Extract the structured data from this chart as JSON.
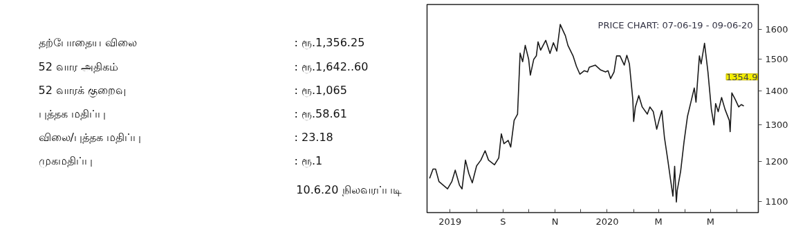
{
  "chart_data": [
    {
      "type": "other",
      "annotations": [
        "தற்போதைய விலை",
        ": ரூ.1,356.25",
        "52 வார அதிகம்",
        ": ரூ.1,642..60",
        "52 வாரக் குறைவு",
        ": ரூ.1,065",
        "புத்தக மதிப்பு",
        ": ரூ.58.61",
        "விலை/புத்தக மதிப்பு",
        ": 23.18",
        "முகமதிப்பு",
        ": ரூ.1",
        "10.6.20 நிலவரப்படி"
      ]
    },
    {
      "type": "line",
      "title": "PRICE CHART: 07-06-19 - 09-06-20",
      "log": "y",
      "x": [
        "2019-06-07",
        "2019-06-11",
        "2019-06-14",
        "2019-06-18",
        "2019-06-23",
        "2019-06-28",
        "2019-07-03",
        "2019-07-07",
        "2019-07-12",
        "2019-07-15",
        "2019-07-19",
        "2019-07-23",
        "2019-07-27",
        "2019-08-01",
        "2019-08-06",
        "2019-08-11",
        "2019-08-15",
        "2019-08-22",
        "2019-08-27",
        "2019-08-30",
        "2019-09-02",
        "2019-09-07",
        "2019-09-10",
        "2019-09-14",
        "2019-09-18",
        "2019-09-21",
        "2019-09-24",
        "2019-09-27",
        "2019-10-01",
        "2019-10-03",
        "2019-10-07",
        "2019-10-10",
        "2019-10-12",
        "2019-10-15",
        "2019-10-21",
        "2019-10-26",
        "2019-10-30",
        "2019-11-03",
        "2019-11-07",
        "2019-11-10",
        "2019-11-13",
        "2019-11-16",
        "2019-11-22",
        "2019-11-26",
        "2019-11-30",
        "2019-12-05",
        "2019-12-09",
        "2019-12-11",
        "2019-12-18",
        "2019-12-24",
        "2019-12-30",
        "2020-01-02",
        "2020-01-05",
        "2020-01-09",
        "2020-01-12",
        "2020-01-16",
        "2020-01-21",
        "2020-01-24",
        "2020-01-27",
        "2020-01-31",
        "2020-02-01",
        "2020-02-03",
        "2020-02-07",
        "2020-02-11",
        "2020-02-17",
        "2020-02-20",
        "2020-02-24",
        "2020-02-28",
        "2020-03-02",
        "2020-03-05",
        "2020-03-08",
        "2020-03-12",
        "2020-03-15",
        "2020-03-18",
        "2020-03-20",
        "2020-03-22",
        "2020-03-23",
        "2020-03-27",
        "2020-03-31",
        "2020-04-04",
        "2020-04-08",
        "2020-04-12",
        "2020-04-14",
        "2020-04-18",
        "2020-04-20",
        "2020-04-24",
        "2020-04-28",
        "2020-05-02",
        "2020-05-05",
        "2020-05-07",
        "2020-05-10",
        "2020-05-14",
        "2020-05-18",
        "2020-05-23",
        "2020-05-24",
        "2020-05-26",
        "2020-05-30",
        "2020-06-03",
        "2020-06-06",
        "2020-06-09"
      ],
      "series": [
        {
          "color": "#1a1a1a",
          "values": [
            1157,
            1181,
            1181,
            1149,
            1140,
            1131,
            1149,
            1178,
            1140,
            1131,
            1204,
            1169,
            1146,
            1189,
            1204,
            1229,
            1204,
            1192,
            1210,
            1275,
            1248,
            1257,
            1239,
            1313,
            1331,
            1520,
            1492,
            1546,
            1500,
            1449,
            1500,
            1511,
            1558,
            1530,
            1563,
            1519,
            1555,
            1527,
            1618,
            1598,
            1579,
            1546,
            1511,
            1477,
            1452,
            1463,
            1459,
            1474,
            1481,
            1466,
            1459,
            1463,
            1438,
            1459,
            1511,
            1511,
            1481,
            1513,
            1485,
            1374,
            1310,
            1352,
            1386,
            1352,
            1331,
            1352,
            1338,
            1288,
            1316,
            1341,
            1266,
            1204,
            1157,
            1113,
            1188,
            1099,
            1127,
            1175,
            1253,
            1324,
            1366,
            1409,
            1366,
            1511,
            1485,
            1553,
            1459,
            1345,
            1300,
            1362,
            1338,
            1380,
            1345,
            1313,
            1281,
            1394,
            1374,
            1352,
            1359,
            1354.9
          ]
        }
      ],
      "xlim": [
        "2019-06-04",
        "2020-06-26"
      ],
      "xticks": [
        {
          "value": "2019-07-01",
          "label": "2019"
        },
        {
          "value": "2019-08-01",
          "label": null
        },
        {
          "value": "2019-09-01",
          "label": "S"
        },
        {
          "value": "2019-10-01",
          "label": null
        },
        {
          "value": "2019-11-01",
          "label": "N"
        },
        {
          "value": "2019-12-01",
          "label": null
        },
        {
          "value": "2020-01-01",
          "label": "2020"
        },
        {
          "value": "2020-02-01",
          "label": null
        },
        {
          "value": "2020-03-01",
          "label": "M"
        },
        {
          "value": "2020-04-01",
          "label": null
        },
        {
          "value": "2020-05-01",
          "label": "M"
        },
        {
          "value": "2020-06-01",
          "label": null
        }
      ],
      "ylim": [
        1074,
        1690
      ],
      "yticks": [
        1100,
        1200,
        1300,
        1400,
        1500,
        1600
      ],
      "annotations": [
        {
          "text": "1354.9",
          "x": "2020-06-09",
          "y": 1354.9
        }
      ]
    }
  ]
}
